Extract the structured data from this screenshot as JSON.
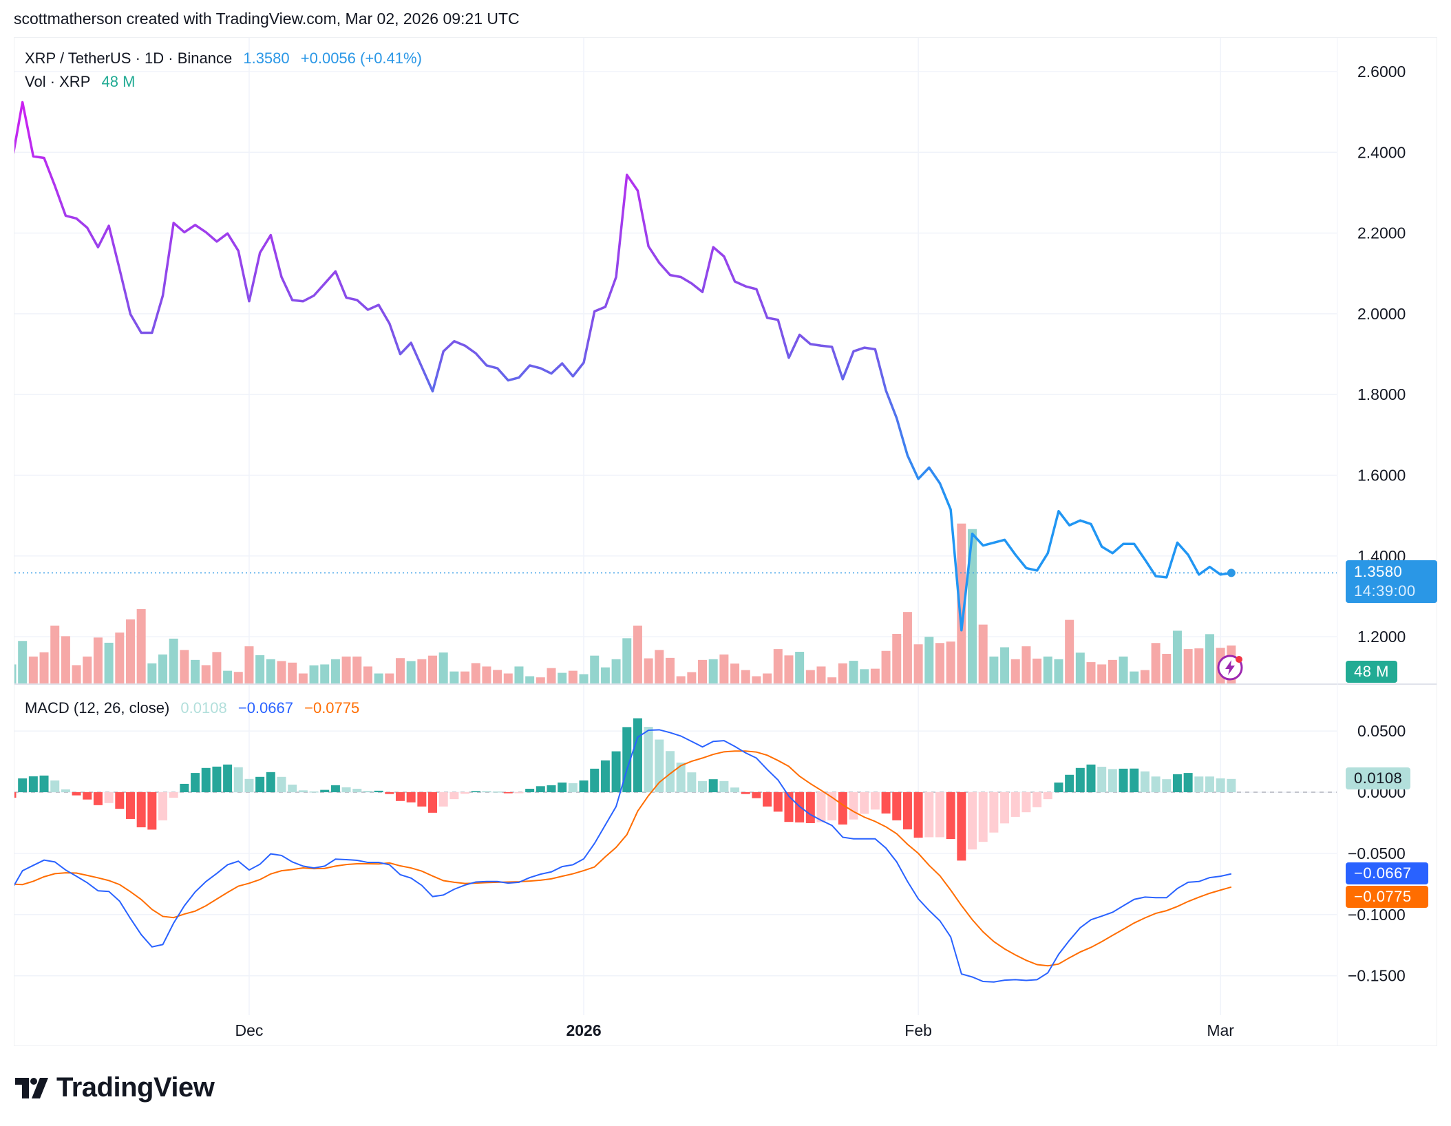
{
  "credit": "scottmatherson created with TradingView.com, Mar 02, 2026 09:21 UTC",
  "legend": {
    "symbol": "XRP / TetherUS · 1D · Binance",
    "price": "1.3580",
    "change": "+0.0056 (+0.41%)",
    "vol_label": "Vol · XRP",
    "vol_value": "48 M",
    "macd_label": "MACD (12, 26, close)",
    "macd_hist": "0.0108",
    "macd_value": "−0.0667",
    "macd_signal": "−0.0775"
  },
  "tags": {
    "price": "1.3580",
    "countdown": "14:39:00",
    "volume": "48 M",
    "hist": "0.0108",
    "macd": "−0.0667",
    "signal": "−0.0775"
  },
  "logo": "TradingView",
  "colors": {
    "price_line_top": "#d01ef2",
    "price_line_mid": "#7b55e8",
    "price_line_bottom": "#2196f3",
    "price_tag": "#2a97e6",
    "volume_up": "#93d4cd",
    "volume_down": "#f6a8a7",
    "volume_tag": "#22ab94",
    "hist_up_strong": "#26a69a",
    "hist_up_weak": "#b2dfdb",
    "hist_down_strong": "#ff5252",
    "hist_down_weak": "#ffcdd2",
    "macd": "#2962ff",
    "signal": "#ff6d00"
  },
  "chart_data": [
    {
      "type": "line",
      "title": "XRP / TetherUS · 1D · Binance",
      "y_axis_ticks": [
        "2.6000",
        "2.4000",
        "2.2000",
        "2.0000",
        "1.8000",
        "1.6000",
        "1.4000",
        "1.2000"
      ],
      "ylim": [
        1.2,
        2.6
      ],
      "x_axis_ticks": [
        {
          "label": "Dec",
          "date": "2025-12-01",
          "bold": false
        },
        {
          "label": "2026",
          "date": "2026-01-01",
          "bold": true
        },
        {
          "label": "Feb",
          "date": "2026-02-01",
          "bold": false
        },
        {
          "label": "Mar",
          "date": "2026-03-01",
          "bold": false
        }
      ],
      "grid": true,
      "dates": [
        "2025-11-09",
        "2025-11-10",
        "2025-11-11",
        "2025-11-12",
        "2025-11-13",
        "2025-11-14",
        "2025-11-15",
        "2025-11-16",
        "2025-11-17",
        "2025-11-18",
        "2025-11-19",
        "2025-11-20",
        "2025-11-21",
        "2025-11-22",
        "2025-11-23",
        "2025-11-24",
        "2025-11-25",
        "2025-11-26",
        "2025-11-27",
        "2025-11-28",
        "2025-11-29",
        "2025-11-30",
        "2025-12-01",
        "2025-12-02",
        "2025-12-03",
        "2025-12-04",
        "2025-12-05",
        "2025-12-06",
        "2025-12-07",
        "2025-12-08",
        "2025-12-09",
        "2025-12-10",
        "2025-12-11",
        "2025-12-12",
        "2025-12-13",
        "2025-12-14",
        "2025-12-15",
        "2025-12-16",
        "2025-12-17",
        "2025-12-18",
        "2025-12-19",
        "2025-12-20",
        "2025-12-21",
        "2025-12-22",
        "2025-12-23",
        "2025-12-24",
        "2025-12-25",
        "2025-12-26",
        "2025-12-27",
        "2025-12-28",
        "2025-12-29",
        "2025-12-30",
        "2025-12-31",
        "2026-01-01",
        "2026-01-02",
        "2026-01-03",
        "2026-01-04",
        "2026-01-05",
        "2026-01-06",
        "2026-01-07",
        "2026-01-08",
        "2026-01-09",
        "2026-01-10",
        "2026-01-11",
        "2026-01-12",
        "2026-01-13",
        "2026-01-14",
        "2026-01-15",
        "2026-01-16",
        "2026-01-17",
        "2026-01-18",
        "2026-01-19",
        "2026-01-20",
        "2026-01-21",
        "2026-01-22",
        "2026-01-23",
        "2026-01-24",
        "2026-01-25",
        "2026-01-26",
        "2026-01-27",
        "2026-01-28",
        "2026-01-29",
        "2026-01-30",
        "2026-01-31",
        "2026-02-01",
        "2026-02-02",
        "2026-02-03",
        "2026-02-04",
        "2026-02-05",
        "2026-02-06",
        "2026-02-07",
        "2026-02-08",
        "2026-02-09",
        "2026-02-10",
        "2026-02-11",
        "2026-02-12",
        "2026-02-13",
        "2026-02-14",
        "2026-02-15",
        "2026-02-16",
        "2026-02-17",
        "2026-02-18",
        "2026-02-19",
        "2026-02-20",
        "2026-02-21",
        "2026-02-22",
        "2026-02-23",
        "2026-02-24",
        "2026-02-25",
        "2026-02-26",
        "2026-02-27",
        "2026-02-28",
        "2026-03-01",
        "2026-03-02"
      ],
      "close": [
        2.374,
        2.524,
        2.39,
        2.386,
        2.317,
        2.243,
        2.236,
        2.213,
        2.165,
        2.218,
        2.11,
        1.999,
        1.953,
        1.953,
        2.045,
        2.225,
        2.202,
        2.22,
        2.202,
        2.179,
        2.199,
        2.156,
        2.031,
        2.151,
        2.195,
        2.091,
        2.034,
        2.031,
        2.045,
        2.075,
        2.105,
        2.04,
        2.034,
        2.01,
        2.022,
        1.976,
        1.9,
        1.928,
        1.868,
        1.808,
        1.907,
        1.932,
        1.921,
        1.902,
        1.872,
        1.865,
        1.835,
        1.842,
        1.872,
        1.865,
        1.852,
        1.877,
        1.845,
        1.879,
        2.006,
        2.017,
        2.091,
        2.344,
        2.305,
        2.167,
        2.126,
        2.096,
        2.091,
        2.075,
        2.054,
        2.165,
        2.142,
        2.08,
        2.068,
        2.061,
        1.99,
        1.985,
        1.891,
        1.948,
        1.925,
        1.921,
        1.918,
        1.838,
        1.907,
        1.916,
        1.912,
        1.81,
        1.741,
        1.649,
        1.591,
        1.619,
        1.58,
        1.515,
        1.216,
        1.455,
        1.426,
        1.433,
        1.44,
        1.403,
        1.37,
        1.364,
        1.407,
        1.511,
        1.476,
        1.488,
        1.479,
        1.423,
        1.407,
        1.43,
        1.43,
        1.391,
        1.35,
        1.347,
        1.433,
        1.403,
        1.354,
        1.373,
        1.354,
        1.358
      ],
      "last_price": 1.358,
      "volume_millions": [
        24.0,
        53.7,
        34.0,
        39.4,
        73.1,
        59.7,
        23.1,
        34.0,
        58.0,
        51.4,
        64.3,
        80.9,
        94.0,
        25.4,
        36.6,
        56.6,
        42.3,
        29.7,
        23.1,
        39.7,
        16.0,
        14.6,
        46.9,
        35.7,
        30.6,
        28.3,
        26.3,
        12.6,
        22.9,
        24.0,
        30.6,
        34.0,
        34.0,
        21.4,
        12.6,
        12.6,
        32.0,
        28.3,
        30.6,
        35.1,
        39.1,
        15.1,
        15.1,
        25.7,
        21.4,
        17.1,
        12.6,
        21.4,
        9.1,
        7.7,
        19.4,
        13.4,
        16.0,
        11.7,
        35.1,
        20.3,
        30.6,
        57.1,
        73.1,
        31.7,
        42.3,
        32.3,
        9.1,
        14.3,
        29.7,
        30.6,
        36.6,
        25.1,
        16.9,
        9.1,
        12.6,
        43.4,
        35.4,
        40.0,
        16.9,
        21.4,
        7.7,
        25.4,
        28.6,
        18.0,
        18.6,
        41.1,
        62.6,
        90.3,
        49.4,
        58.9,
        51.1,
        52.9,
        202,
        195,
        74.3,
        34.0,
        45.7,
        30.6,
        46.9,
        31.4,
        34.0,
        30.6,
        80.3,
        38.9,
        26.9,
        24.0,
        29.7,
        34.0,
        15.1,
        16.9,
        51.1,
        37.4,
        66.6,
        43.4,
        44.3,
        62.3,
        45.0,
        48.0
      ],
      "volume_up": [
        1,
        1,
        0,
        0,
        0,
        0,
        0,
        0,
        0,
        1,
        0,
        0,
        0,
        1,
        1,
        1,
        0,
        1,
        0,
        0,
        1,
        0,
        0,
        1,
        1,
        0,
        0,
        0,
        1,
        1,
        1,
        0,
        0,
        0,
        1,
        0,
        0,
        1,
        0,
        0,
        1,
        1,
        0,
        0,
        0,
        0,
        0,
        1,
        1,
        0,
        0,
        1,
        0,
        1,
        1,
        1,
        1,
        1,
        0,
        0,
        0,
        0,
        0,
        0,
        0,
        1,
        0,
        0,
        0,
        0,
        0,
        0,
        0,
        1,
        0,
        0,
        0,
        0,
        1,
        1,
        0,
        0,
        0,
        0,
        0,
        1,
        0,
        0,
        0,
        1,
        0,
        1,
        1,
        0,
        0,
        0,
        1,
        1,
        0,
        1,
        0,
        0,
        0,
        1,
        1,
        0,
        0,
        0,
        1,
        0,
        0,
        1,
        0,
        0
      ]
    },
    {
      "type": "bar+line",
      "title": "MACD (12, 26, close)",
      "y_axis_ticks": [
        "0.0500",
        "0.0000",
        "−0.0500",
        "−0.1000",
        "−0.1500"
      ],
      "y_tick_values": [
        0.05,
        0,
        -0.05,
        -0.1,
        -0.15
      ],
      "ylim": [
        -0.17,
        0.07
      ],
      "histogram": [
        -0.0045,
        0.0113,
        0.013,
        0.0136,
        0.0096,
        0.0023,
        -0.0026,
        -0.006,
        -0.0106,
        -0.0089,
        -0.0136,
        -0.0219,
        -0.0287,
        -0.0306,
        -0.023,
        -0.0045,
        0.0068,
        0.0157,
        0.0198,
        0.0209,
        0.0226,
        0.0204,
        0.0108,
        0.0125,
        0.0164,
        0.0125,
        0.0062,
        0.0015,
        0.0006,
        0.0019,
        0.0057,
        0.004,
        0.0028,
        0.0011,
        0.0012,
        -0.0015,
        -0.0072,
        -0.0083,
        -0.0117,
        -0.0168,
        -0.0117,
        -0.0057,
        -0.0013,
        0.0009,
        0.0009,
        0.0006,
        -0.0009,
        -0.0004,
        0.0028,
        0.0049,
        0.0057,
        0.0079,
        0.0074,
        0.0096,
        0.0192,
        0.026,
        0.0334,
        0.0532,
        0.0604,
        0.0534,
        0.043,
        0.0336,
        0.0242,
        0.0162,
        0.0091,
        0.0106,
        0.0091,
        0.0038,
        -0.0015,
        -0.0049,
        -0.0117,
        -0.0159,
        -0.0243,
        -0.0247,
        -0.0253,
        -0.0245,
        -0.023,
        -0.0264,
        -0.0223,
        -0.0177,
        -0.0142,
        -0.0174,
        -0.023,
        -0.0304,
        -0.0372,
        -0.0368,
        -0.0368,
        -0.0383,
        -0.0559,
        -0.0468,
        -0.0406,
        -0.033,
        -0.0255,
        -0.0202,
        -0.0164,
        -0.0123,
        -0.0057,
        0.0079,
        0.0142,
        0.0198,
        0.0226,
        0.0208,
        0.0189,
        0.0192,
        0.0193,
        0.017,
        0.0128,
        0.0106,
        0.0147,
        0.0157,
        0.0128,
        0.0128,
        0.0113,
        0.0108
      ],
      "macd": [
        -0.0796,
        -0.0642,
        -0.0598,
        -0.0555,
        -0.057,
        -0.0636,
        -0.0687,
        -0.074,
        -0.0806,
        -0.0811,
        -0.0891,
        -0.1032,
        -0.1164,
        -0.1264,
        -0.1245,
        -0.107,
        -0.0928,
        -0.0815,
        -0.073,
        -0.0664,
        -0.0593,
        -0.0564,
        -0.0636,
        -0.0589,
        -0.0504,
        -0.0517,
        -0.057,
        -0.0604,
        -0.0619,
        -0.0604,
        -0.0547,
        -0.0551,
        -0.0557,
        -0.0574,
        -0.0574,
        -0.0593,
        -0.0674,
        -0.0702,
        -0.0762,
        -0.0853,
        -0.084,
        -0.0793,
        -0.0759,
        -0.0734,
        -0.073,
        -0.073,
        -0.0743,
        -0.0736,
        -0.0698,
        -0.067,
        -0.0651,
        -0.0608,
        -0.0593,
        -0.0545,
        -0.0419,
        -0.0268,
        -0.0117,
        0.0185,
        0.0449,
        0.0506,
        0.051,
        0.0487,
        0.0459,
        0.0415,
        0.037,
        0.0415,
        0.0421,
        0.0374,
        0.0321,
        0.0279,
        0.0185,
        0.01,
        -0.0032,
        -0.0117,
        -0.0183,
        -0.023,
        -0.0272,
        -0.0368,
        -0.0381,
        -0.0381,
        -0.0381,
        -0.0457,
        -0.057,
        -0.073,
        -0.0872,
        -0.0966,
        -0.1051,
        -0.1183,
        -0.1485,
        -0.151,
        -0.1547,
        -0.1551,
        -0.1536,
        -0.1532,
        -0.1538,
        -0.1532,
        -0.1476,
        -0.1325,
        -0.1211,
        -0.1108,
        -0.1042,
        -0.1013,
        -0.0981,
        -0.0928,
        -0.0876,
        -0.0857,
        -0.0862,
        -0.0862,
        -0.0787,
        -0.0736,
        -0.073,
        -0.0698,
        -0.0687,
        -0.0667
      ],
      "signal": [
        -0.0751,
        -0.0755,
        -0.0728,
        -0.0691,
        -0.0666,
        -0.0659,
        -0.0661,
        -0.068,
        -0.07,
        -0.0722,
        -0.0755,
        -0.0813,
        -0.0877,
        -0.0958,
        -0.1015,
        -0.1025,
        -0.0996,
        -0.0972,
        -0.0928,
        -0.0873,
        -0.0819,
        -0.0768,
        -0.0744,
        -0.0714,
        -0.0668,
        -0.0642,
        -0.0632,
        -0.0619,
        -0.0625,
        -0.0623,
        -0.0604,
        -0.0591,
        -0.0585,
        -0.0585,
        -0.0586,
        -0.0578,
        -0.0602,
        -0.0619,
        -0.0645,
        -0.0685,
        -0.0723,
        -0.0736,
        -0.0746,
        -0.0743,
        -0.0739,
        -0.0736,
        -0.0734,
        -0.0732,
        -0.0726,
        -0.0719,
        -0.0708,
        -0.0687,
        -0.0667,
        -0.0641,
        -0.0611,
        -0.0528,
        -0.0451,
        -0.0347,
        -0.0155,
        -0.0028,
        0.008,
        0.0151,
        0.0217,
        0.0253,
        0.0279,
        0.0309,
        0.033,
        0.0336,
        0.0336,
        0.0328,
        0.0302,
        0.0259,
        0.0211,
        0.013,
        0.007,
        0.0015,
        -0.0042,
        -0.0104,
        -0.0158,
        -0.0204,
        -0.0239,
        -0.0283,
        -0.034,
        -0.0426,
        -0.05,
        -0.0598,
        -0.0683,
        -0.08,
        -0.0926,
        -0.1042,
        -0.1141,
        -0.1221,
        -0.1281,
        -0.133,
        -0.1374,
        -0.1409,
        -0.1419,
        -0.1404,
        -0.1353,
        -0.1306,
        -0.1268,
        -0.1221,
        -0.117,
        -0.112,
        -0.1069,
        -0.1027,
        -0.099,
        -0.0968,
        -0.0934,
        -0.0893,
        -0.0858,
        -0.0826,
        -0.08,
        -0.0775
      ]
    }
  ]
}
